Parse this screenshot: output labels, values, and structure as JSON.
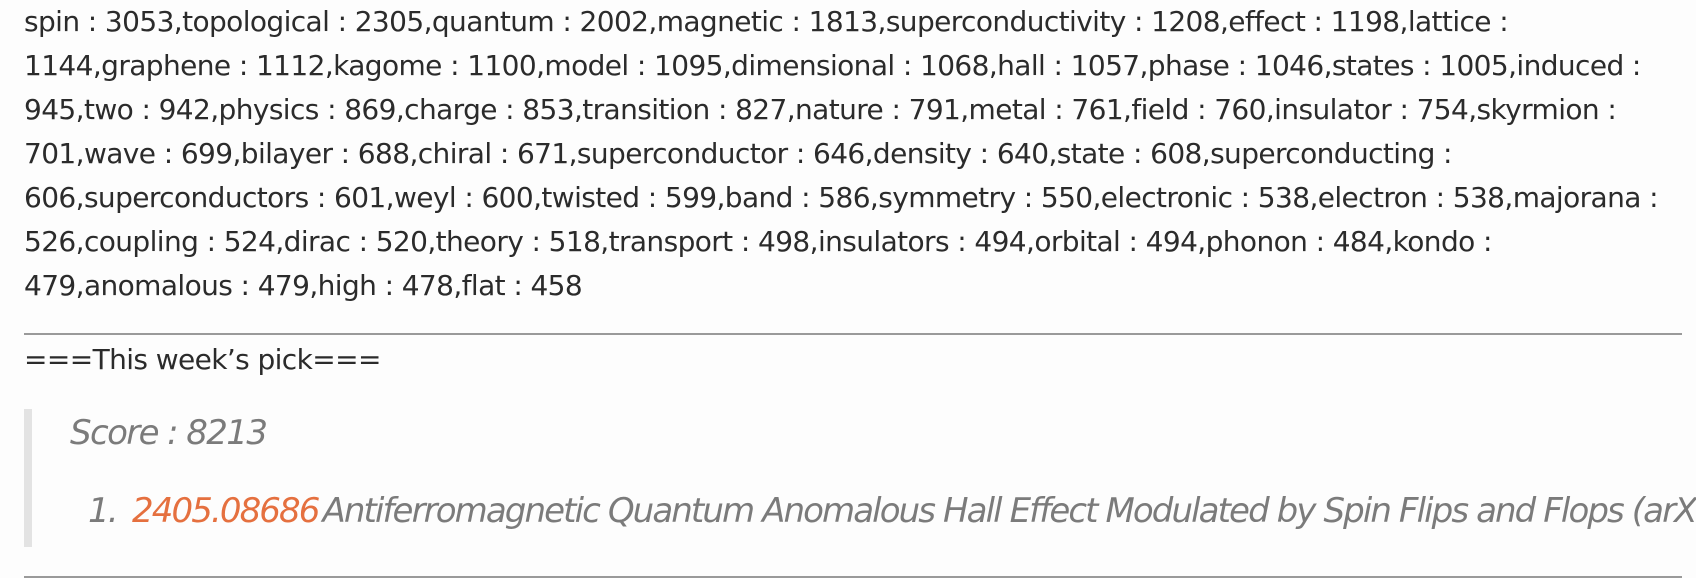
{
  "keywords_text": "spin : 3053,topological : 2305,quantum : 2002,magnetic : 1813,superconductivity : 1208,effect : 1198,lattice : 1144,graphene : 1112,kagome : 1100,model : 1095,dimensional : 1068,hall : 1057,phase : 1046,states : 1005,induced : 945,two : 942,physics : 869,charge : 853,transition : 827,nature : 791,metal : 761,field : 760,insulator : 754,skyrmion : 701,wave : 699,bilayer : 688,chiral : 671,superconductor : 646,density : 640,state : 608,superconducting : 606,superconductors : 601,weyl : 600,twisted : 599,band : 586,symmetry : 550,electronic : 538,electron : 538,majorana : 526,coupling : 524,dirac : 520,theory : 518,transport : 498,insulators : 494,orbital : 494,phonon : 484,kondo : 479,anomalous : 479,high : 478,flat : 458",
  "pick": {
    "heading": "===This week’s pick===",
    "score": "Score : 8213",
    "papers": [
      {
        "number": "1.",
        "id": "2405.08686",
        "title": "Antiferromagnetic Quantum Anomalous Hall Effect Modulated by Spin Flips and Flops (arXiv)"
      }
    ]
  },
  "colors": {
    "link": "#e5703f",
    "muted_text": "#7b7b7b",
    "body_text": "#2b2b2b",
    "rule": "#9a9a9a",
    "quote_bar": "#e3e3e3"
  }
}
